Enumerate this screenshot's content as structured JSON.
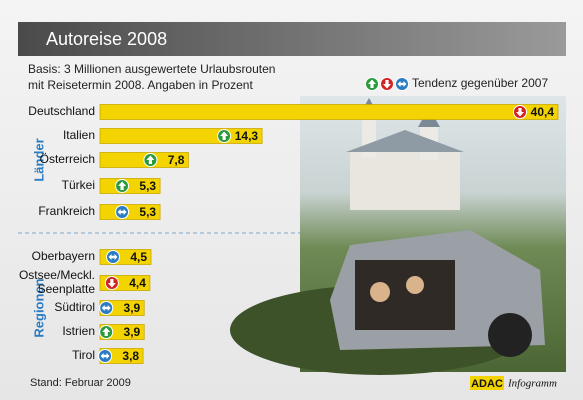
{
  "chart_data": {
    "type": "bar",
    "title": "Autoreise 2008",
    "subtitle": [
      "Basis: 3 Millionen ausgewertete Urlaubsrouten",
      "mit Reisetermin 2008. Angaben in Prozent"
    ],
    "legend_label": "Tendenz gegenüber 2007",
    "color": "#f3d400",
    "trend_colors": {
      "up": "#2b9a3c",
      "down": "#d42222",
      "same": "#2a7cc2"
    },
    "groups": [
      {
        "label": "Länder",
        "categories": [
          "Deutschland",
          "Italien",
          "Österreich",
          "Türkei",
          "Frankreich"
        ],
        "values": [
          40.4,
          14.3,
          7.8,
          5.3,
          5.3
        ],
        "value_labels": [
          "40,4",
          "14,3",
          "7,8",
          "5,3",
          "5,3"
        ],
        "trends": [
          "down",
          "up",
          "up",
          "up",
          "same"
        ]
      },
      {
        "label": "Regionen",
        "categories": [
          "Oberbayern",
          [
            "Ostsee/Meckl.",
            "Seenplatte"
          ],
          "Südtirol",
          "Istrien",
          "Tirol"
        ],
        "values": [
          4.5,
          4.4,
          3.9,
          3.9,
          3.8
        ],
        "value_labels": [
          "4,5",
          "4,4",
          "3,9",
          "3,9",
          "3,8"
        ],
        "trends": [
          "same",
          "down",
          "same",
          "up",
          "same"
        ]
      }
    ],
    "footer": "Stand: Februar 2009",
    "source": "ADAC",
    "source_suffix": "Infogramm"
  }
}
